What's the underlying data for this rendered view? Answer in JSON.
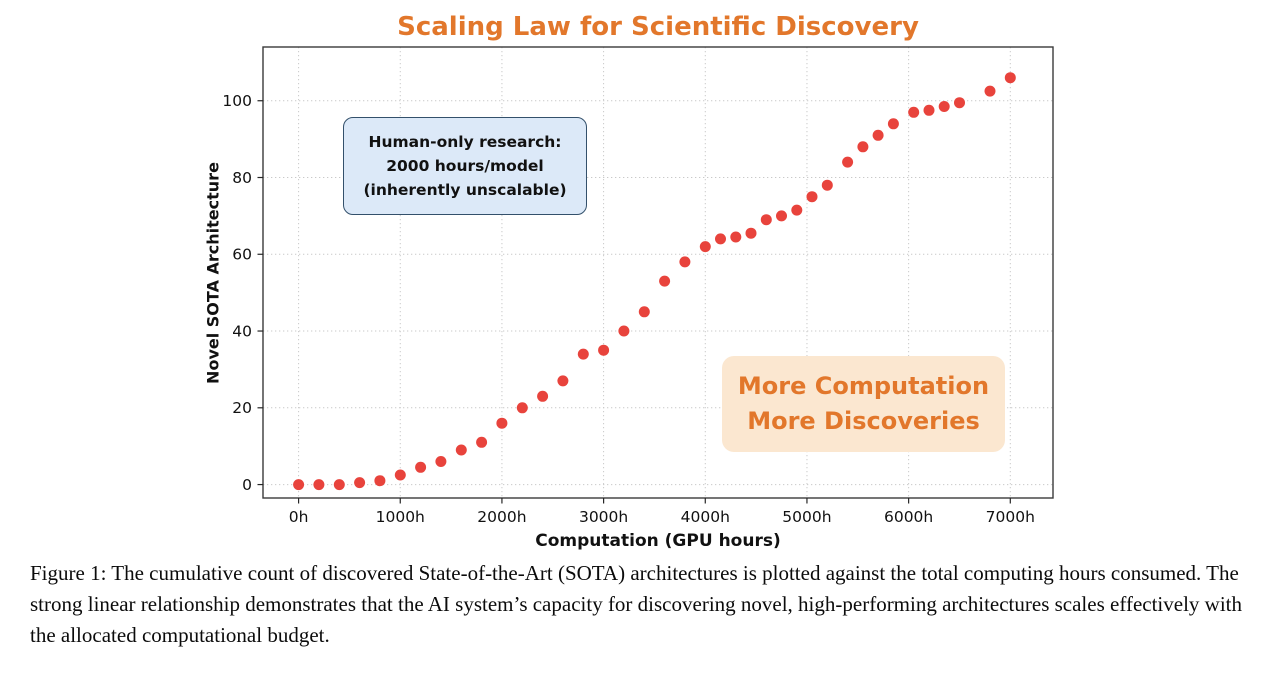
{
  "title": "Scaling Law for Scientific Discovery",
  "colors": {
    "accent_orange": "#E2772B",
    "point_red": "#E8433C",
    "grid_gray": "#c9c9c9",
    "spine": "#3a3a3a",
    "blue_box_bg": "#dce9f8",
    "blue_box_border": "#33506b",
    "orange_box_bg": "#fbe7d0"
  },
  "annotations": {
    "human_box": {
      "line1": "Human-only research:",
      "line2": "2000 hours/model",
      "line3": "(inherently unscalable)"
    },
    "more_box": {
      "line1": "More Computation",
      "line2": "More Discoveries"
    }
  },
  "caption": "Figure 1: The cumulative count of discovered State-of-the-Art (SOTA) architectures is plotted against the total computing hours consumed. The strong linear relationship demonstrates that the AI system’s capacity for discovering novel, high-performing architectures scales effectively with the allocated computational budget.",
  "chart_data": {
    "type": "scatter",
    "title": "Scaling Law for Scientific Discovery",
    "xlabel": "Computation (GPU hours)",
    "ylabel": "Novel SOTA Architecture",
    "xlim": [
      -350,
      7420
    ],
    "ylim": [
      -3.5,
      114
    ],
    "grid": true,
    "legend": "none",
    "x_ticks": [
      {
        "value": 0,
        "label": "0h"
      },
      {
        "value": 1000,
        "label": "1000h"
      },
      {
        "value": 2000,
        "label": "2000h"
      },
      {
        "value": 3000,
        "label": "3000h"
      },
      {
        "value": 4000,
        "label": "4000h"
      },
      {
        "value": 5000,
        "label": "5000h"
      },
      {
        "value": 6000,
        "label": "6000h"
      },
      {
        "value": 7000,
        "label": "7000h"
      }
    ],
    "y_ticks": [
      {
        "value": 0,
        "label": "0"
      },
      {
        "value": 20,
        "label": "20"
      },
      {
        "value": 40,
        "label": "40"
      },
      {
        "value": 60,
        "label": "60"
      },
      {
        "value": 80,
        "label": "80"
      },
      {
        "value": 100,
        "label": "100"
      }
    ],
    "points": [
      [
        0,
        0
      ],
      [
        200,
        0
      ],
      [
        400,
        0
      ],
      [
        600,
        0.5
      ],
      [
        800,
        1
      ],
      [
        1000,
        2.5
      ],
      [
        1200,
        4.5
      ],
      [
        1400,
        6
      ],
      [
        1600,
        9
      ],
      [
        1800,
        11
      ],
      [
        2000,
        16
      ],
      [
        2200,
        20
      ],
      [
        2400,
        23
      ],
      [
        2600,
        27
      ],
      [
        2800,
        34
      ],
      [
        3000,
        35
      ],
      [
        3200,
        40
      ],
      [
        3400,
        45
      ],
      [
        3600,
        53
      ],
      [
        3800,
        58
      ],
      [
        4000,
        62
      ],
      [
        4150,
        64
      ],
      [
        4300,
        64.5
      ],
      [
        4450,
        65.5
      ],
      [
        4600,
        69
      ],
      [
        4750,
        70
      ],
      [
        4900,
        71.5
      ],
      [
        5050,
        75
      ],
      [
        5200,
        78
      ],
      [
        5400,
        84
      ],
      [
        5550,
        88
      ],
      [
        5700,
        91
      ],
      [
        5850,
        94
      ],
      [
        6050,
        97
      ],
      [
        6200,
        97.5
      ],
      [
        6350,
        98.5
      ],
      [
        6500,
        99.5
      ],
      [
        6800,
        102.5
      ],
      [
        7000,
        106
      ]
    ]
  }
}
